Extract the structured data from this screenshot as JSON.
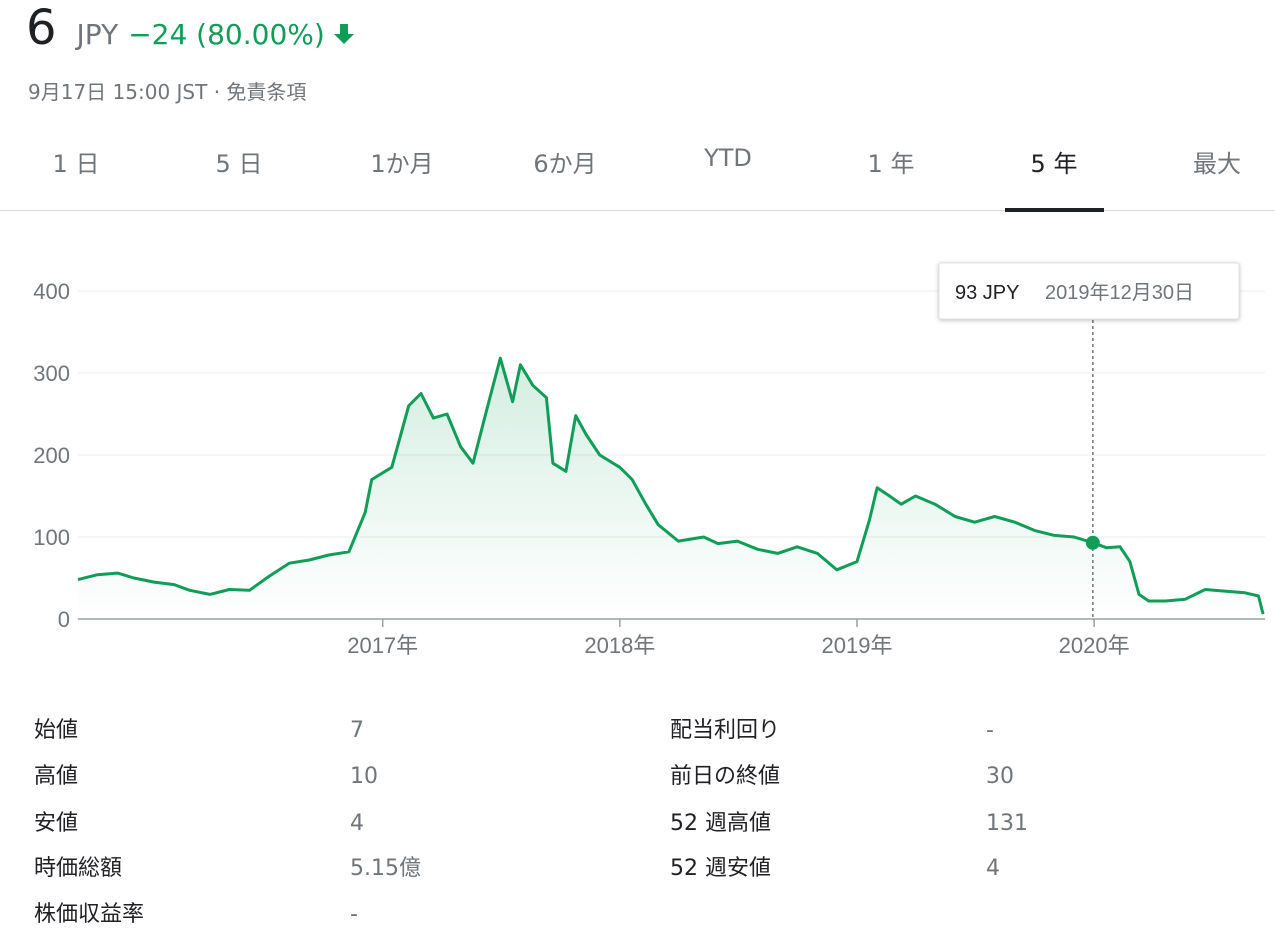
{
  "header": {
    "price": "6",
    "currency": "JPY",
    "change": "−24 (80.00%)",
    "arrow_icon": "arrow-down-icon",
    "timestamp": "9月17日 15:00 JST",
    "separator": "·",
    "disclaimer": "免責条項"
  },
  "tabs": [
    {
      "label": "1 日",
      "active": false
    },
    {
      "label": "5 日",
      "active": false
    },
    {
      "label": "1か月",
      "active": false
    },
    {
      "label": "6か月",
      "active": false
    },
    {
      "label": "YTD",
      "active": false
    },
    {
      "label": "1 年",
      "active": false
    },
    {
      "label": "5 年",
      "active": true
    },
    {
      "label": "最大",
      "active": false
    }
  ],
  "colors": {
    "accent": "#0f9d58",
    "text": "#202124",
    "muted": "#70757a",
    "grid": "#ebebeb"
  },
  "tooltip": {
    "price": "93 JPY",
    "date": "2019年12月30日"
  },
  "chart_data": {
    "type": "area",
    "y_ticks": [
      "0",
      "100",
      "200",
      "300",
      "400"
    ],
    "ylim": [
      0,
      400
    ],
    "x_ticks": [
      "2017年",
      "2018年",
      "2019年",
      "2020年"
    ],
    "grid": true,
    "series": [
      {
        "values": [
          [
            "2015-09-20",
            48
          ],
          [
            "2015-10-20",
            54
          ],
          [
            "2015-11-20",
            56
          ],
          [
            "2015-12-15",
            50
          ],
          [
            "2016-01-15",
            45
          ],
          [
            "2016-02-15",
            42
          ],
          [
            "2016-03-10",
            35
          ],
          [
            "2016-04-10",
            30
          ],
          [
            "2016-05-10",
            36
          ],
          [
            "2016-06-10",
            35
          ],
          [
            "2016-07-10",
            52
          ],
          [
            "2016-08-10",
            68
          ],
          [
            "2016-09-10",
            72
          ],
          [
            "2016-10-10",
            78
          ],
          [
            "2016-11-10",
            82
          ],
          [
            "2016-12-05",
            130
          ],
          [
            "2016-12-15",
            170
          ],
          [
            "2017-01-15",
            185
          ],
          [
            "2017-02-10",
            260
          ],
          [
            "2017-03-01",
            275
          ],
          [
            "2017-03-20",
            245
          ],
          [
            "2017-04-10",
            250
          ],
          [
            "2017-05-01",
            210
          ],
          [
            "2017-05-20",
            190
          ],
          [
            "2017-06-10",
            255
          ],
          [
            "2017-07-01",
            318
          ],
          [
            "2017-07-20",
            265
          ],
          [
            "2017-08-01",
            310
          ],
          [
            "2017-08-20",
            285
          ],
          [
            "2017-09-10",
            270
          ],
          [
            "2017-09-20",
            190
          ],
          [
            "2017-10-10",
            180
          ],
          [
            "2017-10-25",
            248
          ],
          [
            "2017-11-10",
            225
          ],
          [
            "2017-12-01",
            200
          ],
          [
            "2018-01-01",
            185
          ],
          [
            "2018-01-20",
            170
          ],
          [
            "2018-02-10",
            140
          ],
          [
            "2018-03-01",
            115
          ],
          [
            "2018-04-01",
            95
          ],
          [
            "2018-05-10",
            100
          ],
          [
            "2018-06-01",
            92
          ],
          [
            "2018-07-01",
            95
          ],
          [
            "2018-08-01",
            85
          ],
          [
            "2018-09-01",
            80
          ],
          [
            "2018-10-01",
            88
          ],
          [
            "2018-11-01",
            80
          ],
          [
            "2018-12-01",
            60
          ],
          [
            "2019-01-01",
            70
          ],
          [
            "2019-01-20",
            120
          ],
          [
            "2019-02-01",
            160
          ],
          [
            "2019-02-20",
            150
          ],
          [
            "2019-03-10",
            140
          ],
          [
            "2019-04-01",
            150
          ],
          [
            "2019-05-01",
            140
          ],
          [
            "2019-06-01",
            125
          ],
          [
            "2019-07-01",
            118
          ],
          [
            "2019-08-01",
            125
          ],
          [
            "2019-09-01",
            118
          ],
          [
            "2019-10-01",
            108
          ],
          [
            "2019-11-01",
            102
          ],
          [
            "2019-12-01",
            100
          ],
          [
            "2019-12-30",
            93
          ],
          [
            "2020-01-20",
            87
          ],
          [
            "2020-02-10",
            88
          ],
          [
            "2020-02-25",
            70
          ],
          [
            "2020-03-10",
            30
          ],
          [
            "2020-03-25",
            22
          ],
          [
            "2020-04-20",
            22
          ],
          [
            "2020-05-20",
            24
          ],
          [
            "2020-06-20",
            36
          ],
          [
            "2020-07-20",
            34
          ],
          [
            "2020-08-20",
            32
          ],
          [
            "2020-09-10",
            28
          ],
          [
            "2020-09-17",
            6
          ]
        ]
      }
    ]
  },
  "stats": {
    "left": [
      {
        "label": "始値",
        "value": "7"
      },
      {
        "label": "高値",
        "value": "10"
      },
      {
        "label": "安値",
        "value": "4"
      },
      {
        "label": "時価総額",
        "value": "5.15億"
      },
      {
        "label": "株価収益率",
        "value": "-"
      }
    ],
    "right": [
      {
        "label": "配当利回り",
        "value": "-"
      },
      {
        "label": "前日の終値",
        "value": "30"
      },
      {
        "label": "52 週高値",
        "value": "131"
      },
      {
        "label": "52 週安値",
        "value": "4"
      }
    ]
  }
}
